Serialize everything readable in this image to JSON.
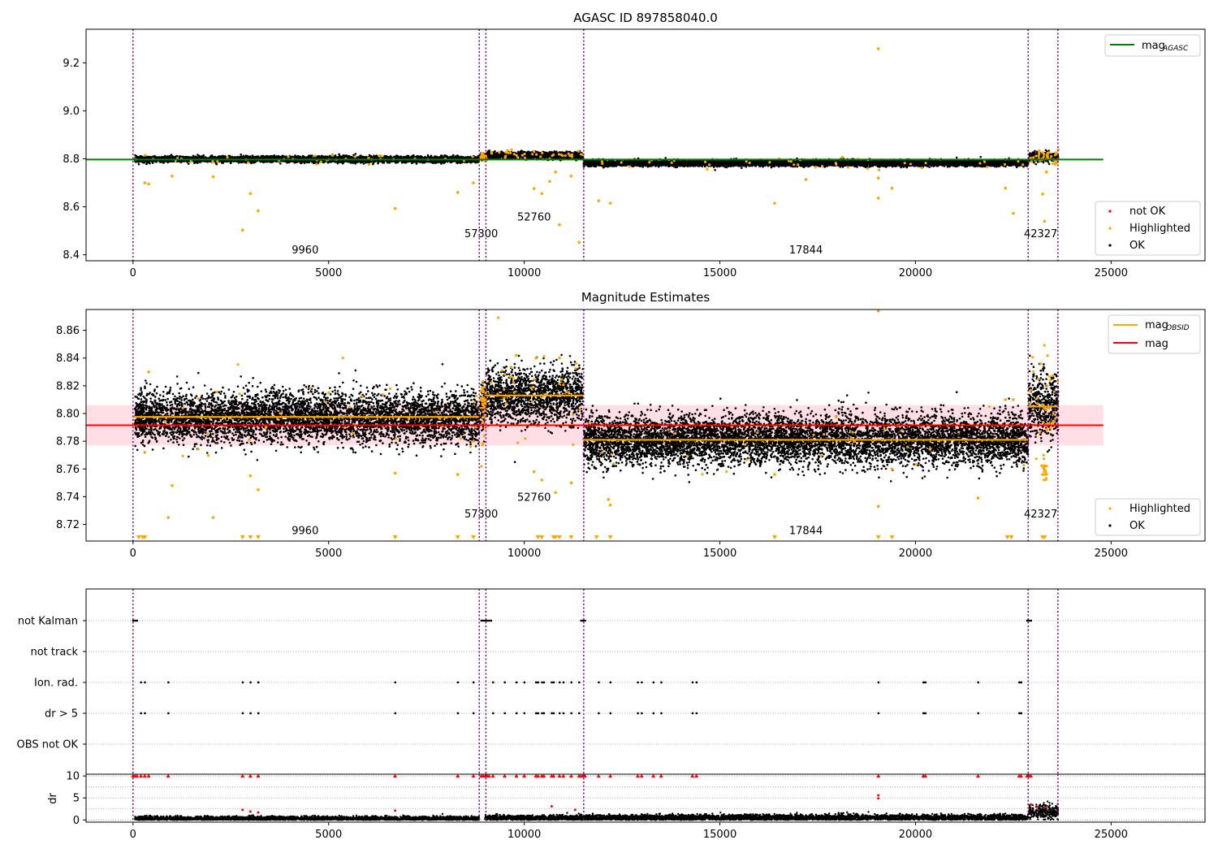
{
  "chart_data": [
    {
      "id": "top",
      "type": "scatter",
      "title": "AGASC ID 897858040.0",
      "xlim": [
        -1200,
        27400
      ],
      "ylim": [
        8.375,
        9.34
      ],
      "xticks": [
        0,
        5000,
        10000,
        15000,
        20000,
        25000
      ],
      "yticks": [
        8.4,
        8.6,
        8.8,
        9.0,
        9.2
      ],
      "ytick_labels": [
        "8.4",
        "8.6",
        "8.8",
        "9.0",
        "9.2"
      ],
      "legends": [
        {
          "position": "top-right",
          "entries": [
            {
              "label": "mag",
              "sub": "AGASC",
              "kind": "line",
              "color": "#008000"
            }
          ]
        },
        {
          "position": "bottom-right",
          "entries": [
            {
              "label": "not OK",
              "kind": "dot",
              "color": "#ff0000"
            },
            {
              "label": "Highlighted",
              "kind": "dot",
              "color": "#ffa500"
            },
            {
              "label": "OK",
              "kind": "dot",
              "color": "#000000"
            }
          ]
        }
      ],
      "reference_lines": [
        {
          "name": "mag_AGASC",
          "y": 8.797,
          "x_range": [
            -1200,
            24800
          ],
          "color": "#008000"
        }
      ],
      "obsid_labels": [
        {
          "text": "9960",
          "x": 4400,
          "y": 8.405
        },
        {
          "text": "57300",
          "x": 8900,
          "y": 8.474
        },
        {
          "text": "52760",
          "x": 10250,
          "y": 8.543
        },
        {
          "text": "17844",
          "x": 17200,
          "y": 8.405
        },
        {
          "text": "42327",
          "x": 23200,
          "y": 8.474
        }
      ],
      "segments": [
        {
          "x0": 50,
          "x1": 8850,
          "mean": 8.798,
          "spread": 0.006
        },
        {
          "x0": 8870,
          "x1": 9030,
          "mean": 8.806,
          "spread": 0.006
        },
        {
          "x0": 9030,
          "x1": 11500,
          "mean": 8.814,
          "spread": 0.007
        },
        {
          "x0": 11520,
          "x1": 22880,
          "mean": 8.782,
          "spread": 0.006
        },
        {
          "x0": 22900,
          "x1": 23650,
          "mean": 8.808,
          "spread": 0.009
        }
      ],
      "highlighted_outliers": [
        [
          300,
          8.7
        ],
        [
          400,
          8.695
        ],
        [
          1000,
          8.728
        ],
        [
          2050,
          8.725
        ],
        [
          2800,
          8.503
        ],
        [
          3000,
          8.655
        ],
        [
          3200,
          8.583
        ],
        [
          6700,
          8.593
        ],
        [
          8300,
          8.66
        ],
        [
          8700,
          8.7
        ],
        [
          10250,
          8.676
        ],
        [
          10450,
          8.655
        ],
        [
          10650,
          8.706
        ],
        [
          10800,
          8.745
        ],
        [
          10900,
          8.525
        ],
        [
          11200,
          8.728
        ],
        [
          11400,
          8.452
        ],
        [
          11900,
          8.625
        ],
        [
          12200,
          8.615
        ],
        [
          16400,
          8.615
        ],
        [
          17200,
          8.714
        ],
        [
          19050,
          8.636
        ],
        [
          19050,
          9.259
        ],
        [
          19050,
          8.72
        ],
        [
          19400,
          8.678
        ],
        [
          22300,
          8.678
        ],
        [
          22500,
          8.573
        ],
        [
          23250,
          8.653
        ],
        [
          23300,
          8.54
        ],
        [
          23350,
          8.745
        ]
      ]
    },
    {
      "id": "middle",
      "type": "scatter",
      "title": "Magnitude Estimates",
      "xlim": [
        -1200,
        27400
      ],
      "ylim": [
        8.708,
        8.875
      ],
      "xticks": [
        0,
        5000,
        10000,
        15000,
        20000,
        25000
      ],
      "yticks": [
        8.72,
        8.74,
        8.76,
        8.78,
        8.8,
        8.82,
        8.84,
        8.86
      ],
      "ytick_labels": [
        "8.72",
        "8.74",
        "8.76",
        "8.78",
        "8.80",
        "8.82",
        "8.84",
        "8.86"
      ],
      "legends": [
        {
          "position": "top-right",
          "entries": [
            {
              "label": "mag",
              "sub": "OBSID",
              "kind": "line",
              "color": "#ffa500"
            },
            {
              "label": "mag",
              "kind": "line",
              "color": "#ff0000"
            }
          ]
        },
        {
          "position": "bottom-right",
          "entries": [
            {
              "label": "Highlighted",
              "kind": "dot",
              "color": "#ffa500"
            },
            {
              "label": "OK",
              "kind": "dot",
              "color": "#000000"
            }
          ]
        }
      ],
      "mean_line": {
        "y": 8.7915,
        "x_range": [
          -1200,
          24800
        ],
        "color": "#ff0000"
      },
      "mean_band": {
        "y0": 8.777,
        "y1": 8.806,
        "color": "#ffc0cb"
      },
      "obsid_mags": [
        {
          "x0": 0,
          "x1": 8850,
          "y": 8.7975
        },
        {
          "x0": 8850,
          "x1": 9000,
          "y": 8.804
        },
        {
          "x0": 9000,
          "x1": 11500,
          "y": 8.813
        },
        {
          "x0": 11500,
          "x1": 22880,
          "y": 8.781
        },
        {
          "x0": 22880,
          "x1": 23650,
          "y": 8.805
        }
      ],
      "obsid_labels": [
        {
          "text": "9960",
          "x": 4400,
          "y": 8.713
        },
        {
          "text": "57300",
          "x": 8900,
          "y": 8.725
        },
        {
          "text": "52760",
          "x": 10250,
          "y": 8.737
        },
        {
          "text": "17844",
          "x": 17200,
          "y": 8.713
        },
        {
          "text": "42327",
          "x": 23200,
          "y": 8.725
        }
      ],
      "segments": [
        {
          "x0": 50,
          "x1": 8850,
          "mean": 8.797,
          "spread": 0.009
        },
        {
          "x0": 8870,
          "x1": 9030,
          "mean": 8.805,
          "spread": 0.009
        },
        {
          "x0": 9030,
          "x1": 11500,
          "mean": 8.813,
          "spread": 0.01
        },
        {
          "x0": 11520,
          "x1": 22880,
          "mean": 8.781,
          "spread": 0.009
        },
        {
          "x0": 22900,
          "x1": 23650,
          "mean": 8.806,
          "spread": 0.012
        }
      ],
      "highlighted_outliers": [
        [
          300,
          8.772
        ],
        [
          400,
          8.83
        ],
        [
          1000,
          8.748
        ],
        [
          900,
          8.725
        ],
        [
          2050,
          8.725
        ],
        [
          3000,
          8.755
        ],
        [
          3200,
          8.745
        ],
        [
          6700,
          8.757
        ],
        [
          8300,
          8.756
        ],
        [
          8700,
          8.78
        ],
        [
          10250,
          8.758
        ],
        [
          10450,
          8.752
        ],
        [
          10800,
          8.743
        ],
        [
          11200,
          8.75
        ],
        [
          12150,
          8.738
        ],
        [
          12200,
          8.734
        ],
        [
          16400,
          8.756
        ],
        [
          19050,
          8.733
        ],
        [
          19050,
          8.874
        ],
        [
          19400,
          8.76
        ],
        [
          21600,
          8.739
        ],
        [
          22300,
          8.81
        ],
        [
          22500,
          8.81
        ],
        [
          23250,
          8.756
        ],
        [
          23300,
          8.762
        ],
        [
          9800,
          8.842
        ],
        [
          10300,
          8.84
        ],
        [
          10900,
          8.84
        ],
        [
          3400,
          8.79
        ],
        [
          5000,
          8.815
        ]
      ],
      "below_range_markers": [
        150,
        250,
        300,
        2800,
        3000,
        3200,
        6700,
        8300,
        8700,
        10350,
        10450,
        10750,
        10800,
        10900,
        11200,
        11850,
        12200,
        16400,
        19050,
        19400,
        22350,
        22450,
        23250,
        23300
      ]
    },
    {
      "id": "flags",
      "type": "scatter",
      "xlim": [
        -1200,
        27400
      ],
      "categories": [
        "not Kalman",
        "not track",
        "Ion. rad.",
        "dr > 5",
        "OBS not OK"
      ],
      "flags": {
        "not Kalman": [
          0,
          50,
          100,
          8900,
          8950,
          9000,
          9050,
          9100,
          9150,
          11450,
          11500,
          11550,
          22850,
          22900,
          22950
        ],
        "not track": [],
        "Ion. rad.": [
          200,
          300,
          900,
          2800,
          3000,
          3200,
          6700,
          8300,
          8700,
          9200,
          9500,
          9800,
          10000,
          10300,
          10350,
          10450,
          10500,
          10700,
          10750,
          10900,
          11000,
          11200,
          11400,
          11900,
          12200,
          12900,
          13000,
          13300,
          13500,
          14300,
          14400,
          19050,
          20200,
          20250,
          21600,
          22650,
          22700
        ],
        "dr > 5": [
          200,
          300,
          900,
          2800,
          3000,
          3200,
          6700,
          8300,
          8700,
          9200,
          9500,
          9800,
          10000,
          10300,
          10350,
          10450,
          10500,
          10700,
          10750,
          10900,
          11000,
          11200,
          11400,
          11900,
          12200,
          12900,
          13000,
          13300,
          13500,
          14300,
          14400,
          19050,
          20200,
          20250,
          21600,
          22650,
          22700
        ],
        "OBS not OK": []
      }
    },
    {
      "id": "dr",
      "type": "scatter",
      "ylabel": "dr",
      "xlim": [
        -1200,
        27400
      ],
      "ylim": [
        -0.5,
        10.4
      ],
      "xticks": [
        0,
        5000,
        10000,
        15000,
        20000,
        25000
      ],
      "yticks": [
        0,
        5,
        10
      ],
      "ytick_labels": [
        "0",
        "5",
        "10"
      ],
      "clipped_marker_y": 10,
      "clipped_markers": [
        0,
        50,
        100,
        200,
        300,
        400,
        900,
        2800,
        3000,
        3200,
        6700,
        8300,
        8700,
        8900,
        8950,
        9000,
        9050,
        9100,
        9200,
        9500,
        9800,
        10000,
        10300,
        10350,
        10450,
        10500,
        10700,
        10750,
        10900,
        11000,
        11200,
        11400,
        11450,
        11500,
        11550,
        11900,
        12200,
        12900,
        13000,
        13300,
        13500,
        14300,
        14400,
        19050,
        20200,
        20250,
        21600,
        22650,
        22700,
        22850,
        22900,
        22950
      ],
      "dr_outliers": [
        [
          2800,
          2.3
        ],
        [
          3000,
          1.9
        ],
        [
          3200,
          1.7
        ],
        [
          6700,
          2.1
        ],
        [
          10700,
          3.1
        ],
        [
          11300,
          2.3
        ],
        [
          19050,
          5.6
        ],
        [
          19050,
          4.9
        ],
        [
          22950,
          3.5
        ],
        [
          23100,
          3.0
        ],
        [
          23300,
          2.8
        ]
      ],
      "segments": [
        {
          "x0": 50,
          "x1": 8850,
          "mean": 0.3,
          "spread": 0.25
        },
        {
          "x0": 9000,
          "x1": 11500,
          "mean": 0.45,
          "spread": 0.3
        },
        {
          "x0": 11520,
          "x1": 22880,
          "mean": 0.5,
          "spread": 0.35
        },
        {
          "x0": 22900,
          "x1": 23650,
          "mean": 1.8,
          "spread": 0.8
        }
      ]
    }
  ],
  "obsid_boundaries": [
    0,
    8850,
    9020,
    11520,
    22880,
    23640
  ]
}
